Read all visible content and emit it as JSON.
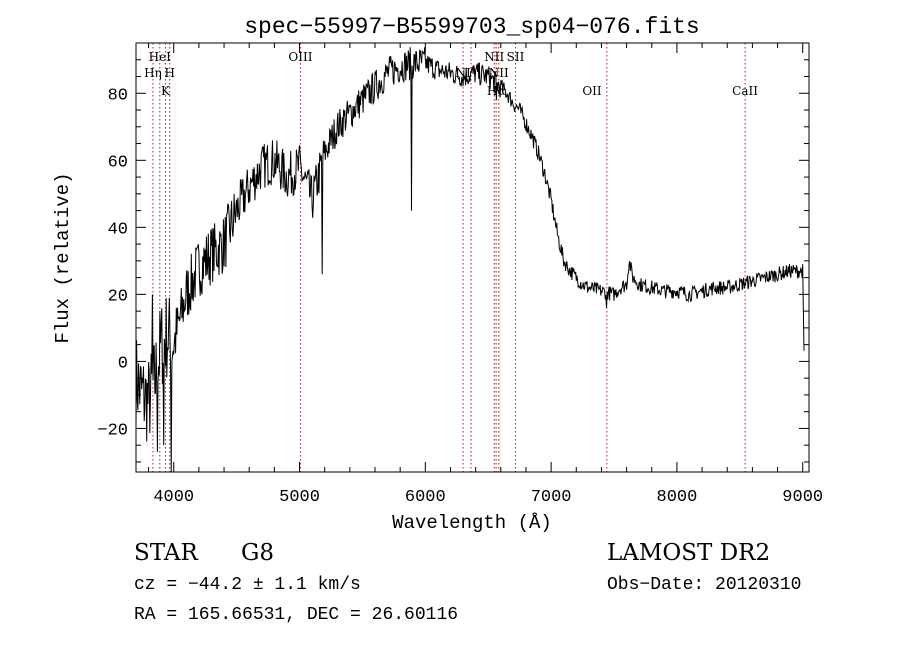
{
  "chart_data": {
    "type": "line",
    "title": "spec−55997−B5599703_sp04−076.fits",
    "xlabel": "Wavelength (Å)",
    "ylabel": "Flux (relative)",
    "xlim": [
      3700,
      9050
    ],
    "ylim": [
      -33,
      95
    ],
    "xticks": [
      4000,
      5000,
      6000,
      7000,
      8000,
      9000
    ],
    "yticks": [
      -20,
      0,
      20,
      40,
      60,
      80
    ],
    "line_color": "#000000",
    "marker_color": "#aa2222",
    "spectrum_anchors": {
      "x": [
        3700,
        3750,
        3800,
        3850,
        3900,
        3950,
        4000,
        4100,
        4200,
        4300,
        4400,
        4500,
        4600,
        4700,
        4800,
        4900,
        5000,
        5100,
        5200,
        5300,
        5400,
        5500,
        5600,
        5700,
        5800,
        5900,
        6000,
        6100,
        6200,
        6300,
        6400,
        6500,
        6560,
        6600,
        6650,
        6700,
        6750,
        6800,
        6850,
        6900,
        6950,
        7000,
        7050,
        7100,
        7150,
        7200,
        7250,
        7300,
        7400,
        7500,
        7550,
        7600,
        7620,
        7650,
        7700,
        7800,
        7900,
        8000,
        8100,
        8200,
        8300,
        8400,
        8500,
        8600,
        8700,
        8800,
        8900,
        9000,
        9010
      ],
      "y": [
        -5,
        -10,
        -12,
        -6,
        5,
        8,
        5,
        20,
        28,
        32,
        35,
        45,
        52,
        58,
        60,
        55,
        58,
        48,
        62,
        70,
        74,
        78,
        82,
        86,
        88,
        89,
        89,
        87,
        86,
        85,
        86,
        85,
        83,
        82,
        80,
        77,
        75,
        71,
        67,
        62,
        56,
        48,
        38,
        30,
        27,
        25,
        23,
        22,
        21,
        20,
        22,
        23,
        30,
        25,
        23,
        22,
        21,
        21,
        20,
        21,
        22,
        22,
        23,
        24,
        25,
        26,
        27,
        27,
        2
      ]
    },
    "spectrum_features": {
      "x": [
        3830,
        3870,
        3920,
        3980,
        4020,
        5180,
        5890,
        6563,
        7440
      ],
      "y": [
        20,
        -27,
        -25,
        -33,
        16,
        26,
        45,
        78,
        16
      ]
    },
    "line_markers": [
      {
        "label": "HeI",
        "x": 3889,
        "row": 0
      },
      {
        "label": "Hη",
        "x": 3835,
        "row": 1
      },
      {
        "label": "H",
        "x": 3968,
        "row": 1
      },
      {
        "label": "K",
        "x": 3934,
        "row": 2
      },
      {
        "label": "OIII",
        "x": 5007,
        "row": 0
      },
      {
        "label": "NI",
        "x": 6300,
        "row": 1
      },
      {
        "label": "NII",
        "x": 6548,
        "row": 0
      },
      {
        "label": "SII",
        "x": 6717,
        "row": 0
      },
      {
        "label": "NII",
        "x": 6584,
        "row": 1
      },
      {
        "label": "Hα",
        "x": 6563,
        "row": 2
      },
      {
        "label": "OII",
        "x": 7325,
        "row": 2
      },
      {
        "label": "CaII",
        "x": 8542,
        "row": 2
      }
    ],
    "marker_lines_x": [
      3835,
      3889,
      3934,
      3968,
      5007,
      6300,
      6363,
      6548,
      6563,
      6584,
      6717,
      7443,
      8542
    ],
    "grid": false,
    "legend": "none"
  },
  "info": {
    "class": "STAR",
    "subclass": "G8",
    "cz": "cz = −44.2 ± 1.1 km/s",
    "coords": "RA = 165.66531, DEC =  26.60116",
    "survey": "LAMOST DR2",
    "obs_date": "Obs−Date: 20120310"
  }
}
